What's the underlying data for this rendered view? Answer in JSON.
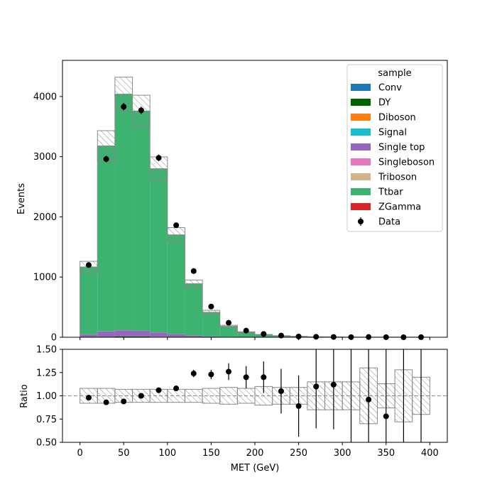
{
  "chart_data": [
    {
      "type": "bar",
      "stacked": true,
      "xlabel": "MET (GeV)",
      "ylabel": "Events",
      "xlim": [
        -20,
        420
      ],
      "ylim": [
        0,
        4600
      ],
      "yticks": [
        0,
        1000,
        2000,
        3000,
        4000
      ],
      "xticks": [
        0,
        50,
        100,
        150,
        200,
        250,
        300,
        350,
        400
      ],
      "bin_edges": [
        0,
        20,
        40,
        60,
        80,
        100,
        120,
        140,
        160,
        180,
        200,
        220,
        240,
        260,
        280,
        300,
        320,
        340,
        360,
        380,
        400
      ],
      "legend": {
        "title": "sample",
        "placement": "top-right"
      },
      "series": [
        {
          "name": "Conv",
          "color": "#1f77b4",
          "values": [
            0,
            0,
            0,
            0,
            0,
            0,
            0,
            0,
            0,
            0,
            0,
            0,
            0,
            0,
            0,
            0,
            0,
            0,
            0,
            0
          ]
        },
        {
          "name": "DY",
          "color": "#006400",
          "values": [
            5,
            5,
            15,
            15,
            8,
            5,
            3,
            2,
            1,
            1,
            0,
            0,
            0,
            0,
            0,
            0,
            0,
            0,
            0,
            0
          ]
        },
        {
          "name": "Diboson",
          "color": "#ff7f0e",
          "values": [
            1,
            1,
            1,
            1,
            1,
            1,
            0,
            0,
            0,
            0,
            0,
            0,
            0,
            0,
            0,
            0,
            0,
            0,
            0,
            0
          ]
        },
        {
          "name": "Signal",
          "color": "#17becf",
          "values": [
            0,
            0,
            0,
            0,
            0,
            0,
            0,
            0,
            0,
            0,
            0,
            0,
            0,
            0,
            0,
            0,
            0,
            0,
            0,
            0
          ]
        },
        {
          "name": "Single top",
          "color": "#9467bd",
          "values": [
            40,
            90,
            100,
            90,
            70,
            45,
            25,
            12,
            6,
            3,
            2,
            1,
            1,
            0,
            0,
            0,
            0,
            0,
            0,
            0
          ]
        },
        {
          "name": "Singleboson",
          "color": "#e377c2",
          "values": [
            2,
            2,
            2,
            2,
            1,
            1,
            1,
            0,
            0,
            0,
            0,
            0,
            0,
            0,
            0,
            0,
            0,
            0,
            0,
            0
          ]
        },
        {
          "name": "Triboson",
          "color": "#d2b48c",
          "values": [
            0,
            0,
            0,
            0,
            0,
            0,
            0,
            0,
            0,
            0,
            0,
            0,
            0,
            0,
            0,
            0,
            0,
            0,
            0,
            0
          ]
        },
        {
          "name": "Ttbar",
          "color": "#3cb371",
          "values": [
            1120,
            3080,
            3920,
            3650,
            2720,
            1650,
            860,
            400,
            175,
            80,
            40,
            23,
            12,
            6,
            4,
            2,
            1,
            1,
            1,
            1
          ]
        },
        {
          "name": "ZGamma",
          "color": "#d62728",
          "values": [
            0,
            0,
            0,
            0,
            0,
            0,
            0,
            0,
            0,
            0,
            0,
            0,
            0,
            0,
            0,
            0,
            0,
            0,
            0,
            0
          ]
        }
      ],
      "mc_uncertainty_band": [
        0.08,
        0.08,
        0.07,
        0.07,
        0.07,
        0.07,
        0.07,
        0.08,
        0.09,
        0.08,
        0.1,
        0.09,
        0.09,
        0.15,
        0.15,
        0.15,
        0.3,
        0.13,
        0.28,
        0.2
      ],
      "data": {
        "name": "Data",
        "x": [
          10,
          30,
          50,
          70,
          90,
          110,
          130,
          150,
          170,
          190,
          210,
          230,
          250,
          270,
          290,
          310,
          330,
          350,
          370,
          390
        ],
        "y": [
          1200,
          2960,
          3830,
          3770,
          2980,
          1860,
          1100,
          510,
          240,
          110,
          55,
          28,
          12,
          8,
          5,
          2,
          4,
          1,
          0,
          1
        ],
        "err": [
          35,
          54,
          62,
          61,
          55,
          43,
          33,
          23,
          15,
          10,
          7,
          5,
          3.5,
          3,
          2.2,
          1.4,
          2,
          1,
          0,
          1
        ]
      }
    },
    {
      "type": "scatter",
      "xlabel": "MET (GeV)",
      "ylabel": "Ratio",
      "xlim": [
        -20,
        420
      ],
      "ylim": [
        0.5,
        1.5
      ],
      "yticks": [
        "0.50",
        "0.75",
        "1.00",
        "1.25",
        "1.50"
      ],
      "xticks": [
        0,
        50,
        100,
        150,
        200,
        250,
        300,
        350,
        400
      ],
      "reference_line": 1.0,
      "x": [
        10,
        30,
        50,
        70,
        90,
        110,
        130,
        150,
        170,
        190,
        210,
        230,
        250,
        270,
        290,
        310,
        330,
        350,
        370,
        390
      ],
      "y": [
        0.98,
        0.93,
        0.94,
        1.0,
        1.06,
        1.08,
        1.24,
        1.23,
        1.26,
        1.2,
        1.2,
        1.05,
        0.89,
        1.1,
        1.12,
        null,
        0.96,
        0.78,
        null,
        null
      ],
      "err": [
        0.03,
        0.02,
        0.02,
        0.02,
        0.02,
        0.03,
        0.04,
        0.05,
        0.09,
        0.12,
        0.17,
        0.24,
        0.33,
        0.45,
        0.48,
        0.8,
        0.55,
        0.8,
        0.8,
        0.8
      ],
      "err_only": [
        false,
        false,
        false,
        false,
        false,
        false,
        false,
        false,
        false,
        false,
        false,
        false,
        false,
        false,
        false,
        true,
        false,
        false,
        true,
        true
      ]
    }
  ]
}
